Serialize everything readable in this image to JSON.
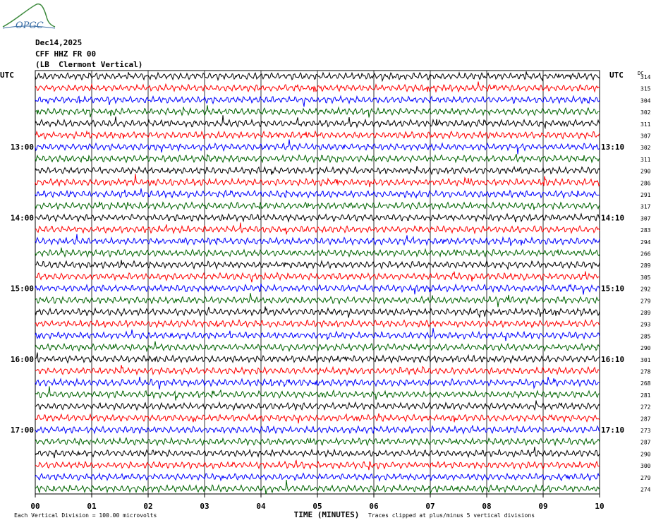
{
  "header": {
    "date": "Dec14,2025",
    "channel": "CFF HHZ FR 00",
    "location": "(LB  Clermont Vertical)"
  },
  "logo": {
    "text": "OPGC"
  },
  "chart_data": {
    "type": "line",
    "left_axis_label": "UTC",
    "right_axis_label": "UTC",
    "dc_label": "DC",
    "xlabel": "TIME (MINUTES)",
    "xlim": [
      0,
      10
    ],
    "x_ticks": [
      "00",
      "01",
      "02",
      "03",
      "04",
      "05",
      "06",
      "07",
      "08",
      "09",
      "10"
    ],
    "left_time_labels": [
      {
        "row": 6,
        "label": "13:00"
      },
      {
        "row": 12,
        "label": "14:00"
      },
      {
        "row": 18,
        "label": "15:00"
      },
      {
        "row": 24,
        "label": "16:00"
      },
      {
        "row": 30,
        "label": "17:00"
      }
    ],
    "right_time_labels": [
      {
        "row": 6,
        "label": "13:10"
      },
      {
        "row": 12,
        "label": "14:10"
      },
      {
        "row": 18,
        "label": "15:10"
      },
      {
        "row": 24,
        "label": "16:10"
      },
      {
        "row": 30,
        "label": "17:10"
      }
    ],
    "trace_colors": [
      "#000000",
      "#ff0000",
      "#0000ff",
      "#006400"
    ],
    "dc_values": [
      "314",
      "315",
      "304",
      "302",
      "311",
      "307",
      "302",
      "311",
      "290",
      "286",
      "291",
      "317",
      "307",
      "283",
      "294",
      "266",
      "289",
      "305",
      "292",
      "279",
      "289",
      "293",
      "285",
      "290",
      "301",
      "278",
      "268",
      "281",
      "272",
      "287",
      "273",
      "287",
      "290",
      "300",
      "279",
      "274"
    ],
    "footer_left": "Each Vertical Division =  100.00 microvolts",
    "footer_right": "Traces clipped at plus/minus 5 vertical divisions"
  }
}
